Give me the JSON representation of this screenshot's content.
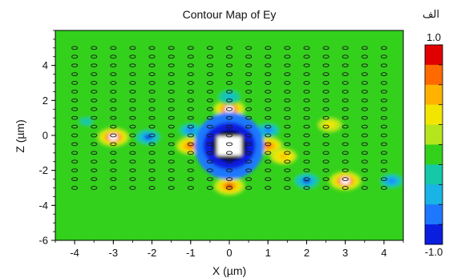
{
  "chart_data": {
    "type": "heatmap",
    "title": "Contour Map of Ey",
    "xlabel": "X (µm)",
    "ylabel": "Z (µm)",
    "xlim": [
      -4.5,
      4.5
    ],
    "ylim": [
      -6,
      6
    ],
    "x_ticks": [
      "-4",
      "-3",
      "-2",
      "-1",
      "0",
      "1",
      "2",
      "3",
      "4"
    ],
    "y_ticks": [
      "4",
      "2",
      "0",
      "-2",
      "-4",
      "-6"
    ],
    "colorbar": {
      "max_label": "1.0",
      "min_label": "-1.0",
      "colors": [
        "#e00000",
        "#ff6a00",
        "#ffb300",
        "#f2e600",
        "#b5e61d",
        "#33d11c",
        "#14c8a8",
        "#19b4e6",
        "#1e78ff",
        "#0a1ee0"
      ]
    },
    "background_level": 0.0,
    "hotspots": [
      {
        "x": -3.0,
        "z": -0.1,
        "value": 1.0
      },
      {
        "x": -2.1,
        "z": -0.1,
        "value": -0.9
      },
      {
        "x": -1.0,
        "z": 0.3,
        "value": -0.7
      },
      {
        "x": -1.0,
        "z": -0.6,
        "value": 0.8
      },
      {
        "x": 0.0,
        "z": 1.5,
        "value": 1.0
      },
      {
        "x": 0.0,
        "z": 2.2,
        "value": -0.6
      },
      {
        "x": 0.0,
        "z": -2.9,
        "value": 0.9
      },
      {
        "x": 1.0,
        "z": 0.3,
        "value": -0.7
      },
      {
        "x": 1.0,
        "z": -0.6,
        "value": 0.8
      },
      {
        "x": 2.0,
        "z": -2.6,
        "value": -0.9
      },
      {
        "x": 3.0,
        "z": -2.6,
        "value": 1.0
      },
      {
        "x": 4.2,
        "z": -2.6,
        "value": -0.7
      },
      {
        "x": -3.7,
        "z": 0.8,
        "value": -0.4
      },
      {
        "x": 1.4,
        "z": -1.2,
        "value": 0.6
      },
      {
        "x": 2.6,
        "z": 0.6,
        "value": 0.4
      }
    ],
    "saturated_center": {
      "x": 0.0,
      "z": -0.6,
      "value": -1.0
    },
    "grid": false,
    "scatterer_rings": {
      "x_count": 17,
      "z_count": 17
    }
  },
  "corner_text": "الف"
}
